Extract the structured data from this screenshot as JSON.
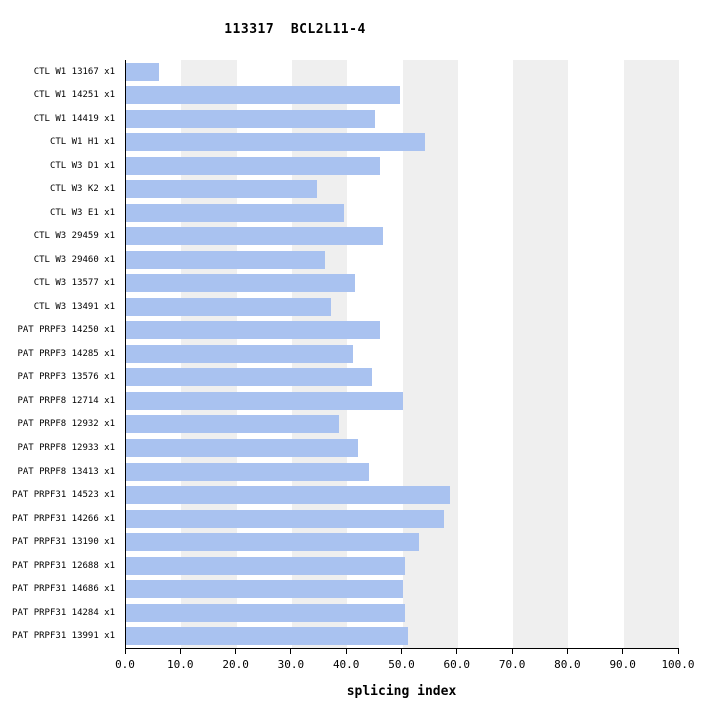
{
  "chart_data": {
    "type": "bar",
    "orientation": "horizontal",
    "title": "113317  BCL2L11-4",
    "xlabel": "splicing index",
    "xlim": [
      0,
      100
    ],
    "grid": "alternating-vertical-bands",
    "legend": "none",
    "x_ticks": [
      0,
      10,
      20,
      30,
      40,
      50,
      60,
      70,
      80,
      90,
      100
    ],
    "x_tick_labels": [
      "0.0",
      "10.0",
      "20.0",
      "30.0",
      "40.0",
      "50.0",
      "60.0",
      "70.0",
      "80.0",
      "90.0",
      "100.0"
    ],
    "band_ranges": [
      [
        10,
        20
      ],
      [
        30,
        40
      ],
      [
        50,
        60
      ],
      [
        70,
        80
      ],
      [
        90,
        100
      ]
    ],
    "colors": {
      "bar": "#a9c2f0",
      "band": "#efefef",
      "axis": "#000000",
      "background": "#ffffff"
    },
    "categories": [
      "CTL W1 13167 x1",
      "CTL W1 14251 x1",
      "CTL W1 14419 x1",
      "CTL W1 H1 x1",
      "CTL W3 D1 x1",
      "CTL W3 K2 x1",
      "CTL W3 E1 x1",
      "CTL W3 29459 x1",
      "CTL W3 29460 x1",
      "CTL W3 13577 x1",
      "CTL W3 13491 x1",
      "PAT PRPF3 14250 x1",
      "PAT PRPF3 14285 x1",
      "PAT PRPF3 13576 x1",
      "PAT PRPF8 12714 x1",
      "PAT PRPF8 12932 x1",
      "PAT PRPF8 12933 x1",
      "PAT PRPF8 13413 x1",
      "PAT PRPF31 14523 x1",
      "PAT PRPF31 14266 x1",
      "PAT PRPF31 13190 x1",
      "PAT PRPF31 12688 x1",
      "PAT PRPF31 14686 x1",
      "PAT PRPF31 14284 x1",
      "PAT PRPF31 13991 x1"
    ],
    "values": [
      6,
      49.5,
      45,
      54,
      46,
      34.5,
      39.5,
      46.5,
      36,
      41.5,
      37,
      46,
      41,
      44.5,
      50,
      38.5,
      42,
      44,
      58.5,
      57.5,
      53,
      50.5,
      50,
      50.5,
      51
    ]
  }
}
